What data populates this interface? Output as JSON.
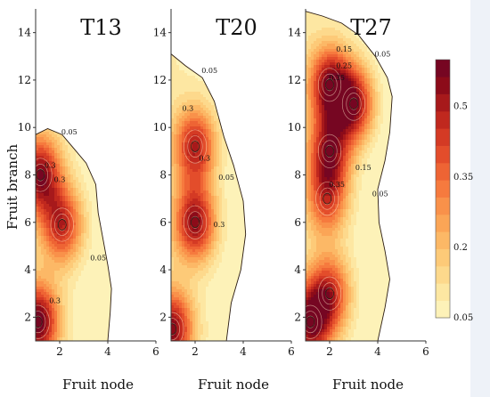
{
  "chart_data": {
    "type": "heatmap",
    "xlabel": "Fruit node",
    "ylabel": "Fruit branch",
    "xlim": [
      1,
      6
    ],
    "ylim": [
      1,
      15
    ],
    "x_ticks": [
      "2",
      "4",
      "6"
    ],
    "y_ticks": [
      "2",
      "4",
      "6",
      "8",
      "10",
      "12",
      "14"
    ],
    "colorbar": {
      "ticks": [
        "0.05",
        "0.2",
        "0.35",
        "0.5"
      ],
      "tick_values": [
        0.05,
        0.2,
        0.35,
        0.5
      ],
      "range": [
        0.05,
        0.6
      ],
      "colors": [
        "#fdf2b8",
        "#fde7a2",
        "#fdd98c",
        "#fdca78",
        "#fcb866",
        "#fba556",
        "#f9914a",
        "#f67a3e",
        "#ee6434",
        "#e34d2b",
        "#d43a24",
        "#c0281e",
        "#a7191b",
        "#8c0b19",
        "#760622"
      ]
    },
    "panels": [
      {
        "title": "T13",
        "contour_labels": [
          "0.05",
          "0.3",
          "0.3",
          "0.05",
          "0.3"
        ],
        "peaks": [
          {
            "x": 1.2,
            "y": 8.0,
            "value": 0.55
          },
          {
            "x": 2.1,
            "y": 5.9,
            "value": 0.48
          },
          {
            "x": 1.1,
            "y": 1.8,
            "value": 0.6
          }
        ]
      },
      {
        "title": "T20",
        "contour_labels": [
          "0.05",
          "0.3",
          "0.3",
          "0.05",
          "0.3"
        ],
        "peaks": [
          {
            "x": 2.0,
            "y": 9.2,
            "value": 0.5
          },
          {
            "x": 2.0,
            "y": 6.0,
            "value": 0.55
          },
          {
            "x": 1.05,
            "y": 1.5,
            "value": 0.55
          }
        ]
      },
      {
        "title": "T27",
        "contour_labels": [
          "0.15",
          "0.25",
          "0.35",
          "0.05",
          "0.35",
          "0.15",
          "0.05"
        ],
        "peaks": [
          {
            "x": 2.0,
            "y": 11.8,
            "value": 0.55
          },
          {
            "x": 3.0,
            "y": 11.0,
            "value": 0.55
          },
          {
            "x": 2.0,
            "y": 9.0,
            "value": 0.5
          },
          {
            "x": 1.9,
            "y": 7.0,
            "value": 0.4
          },
          {
            "x": 2.0,
            "y": 3.0,
            "value": 0.45
          },
          {
            "x": 1.2,
            "y": 1.8,
            "value": 0.55
          }
        ]
      }
    ]
  }
}
